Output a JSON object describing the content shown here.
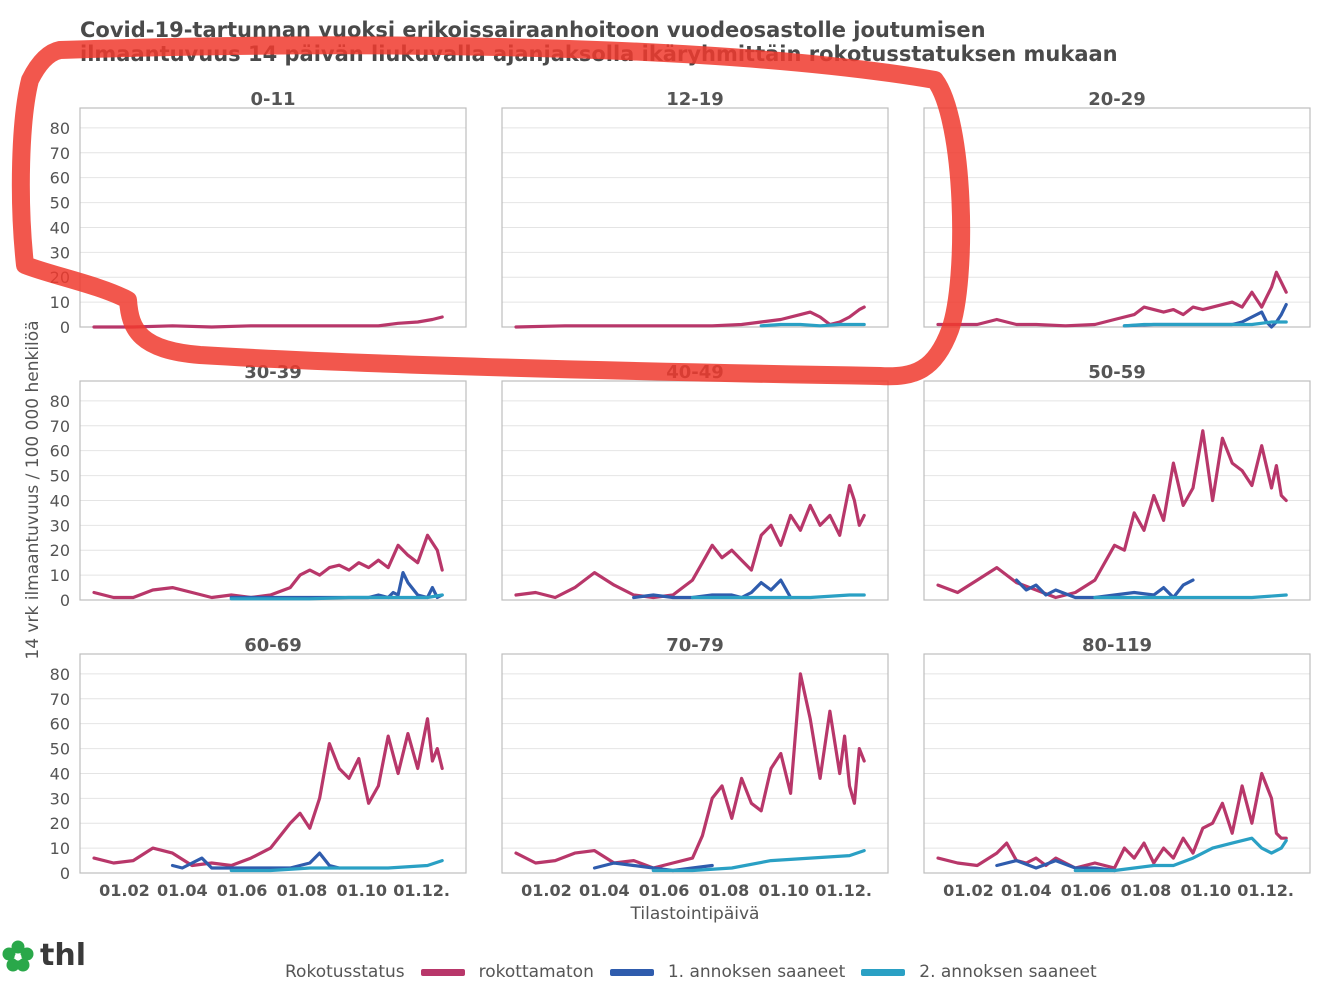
{
  "title": {
    "line1": "Covid-19-tartunnan vuoksi erikoissairaanhoitoon vuodeosastolle joutumisen",
    "line2": "ilmaantuvuus 14 päivän liukuvalla ajanjaksolla ikäryhmittäin rokotusstatuksen mukaan"
  },
  "logo": {
    "text": "thl",
    "icon": "flower-icon",
    "color": "#2aa84a"
  },
  "legend": {
    "title": "Rokotusstatus",
    "items": [
      {
        "label": "rokottamaton",
        "color": "#b8376a"
      },
      {
        "label": "1. annoksen saaneet",
        "color": "#2f5cad"
      },
      {
        "label": "2. annoksen saaneet",
        "color": "#2aa0c4"
      }
    ]
  },
  "annotation": {
    "type": "red-hand-drawn-outline",
    "color": "#f03a2e",
    "encloses": [
      "0-11",
      "12-19"
    ]
  },
  "chart_data": {
    "type": "line",
    "ylabel": "14 vrk ilmaantuvuus / 100 000 henkilöä",
    "xlabel": "Tilastointipäivä",
    "ylim": [
      0,
      88
    ],
    "yticks": [
      0,
      10,
      20,
      30,
      40,
      50,
      60,
      70,
      80
    ],
    "xlim": [
      0,
      365
    ],
    "xticks": [
      31,
      90,
      151,
      212,
      273,
      334
    ],
    "xtick_labels": [
      "01.02",
      "01.04",
      "01.06",
      "01.08",
      "01.10",
      "01.12."
    ],
    "grid": true,
    "panels": [
      {
        "name": "0-11",
        "series": [
          {
            "name": "rokottamaton",
            "x": [
              0,
              40,
              80,
              120,
              160,
              200,
              230,
              260,
              290,
              310,
              330,
              345,
              355
            ],
            "y": [
              0,
              0,
              0.5,
              0,
              0.5,
              0.5,
              0.5,
              0.5,
              0.5,
              1.5,
              2,
              3,
              4
            ]
          }
        ]
      },
      {
        "name": "12-19",
        "series": [
          {
            "name": "rokottamaton",
            "x": [
              0,
              50,
              100,
              150,
              200,
              230,
              250,
              270,
              290,
              300,
              310,
              320,
              330,
              340,
              350,
              355
            ],
            "y": [
              0,
              0.5,
              0.5,
              0.5,
              0.5,
              1,
              2,
              3,
              5,
              6,
              4,
              1,
              2,
              4,
              7,
              8
            ]
          },
          {
            "name": "2. annoksen saaneet",
            "x": [
              250,
              270,
              290,
              310,
              330,
              355
            ],
            "y": [
              0.5,
              1,
              1,
              0.5,
              1,
              1
            ]
          }
        ]
      },
      {
        "name": "20-29",
        "series": [
          {
            "name": "rokottamaton",
            "x": [
              0,
              20,
              40,
              60,
              80,
              100,
              130,
              160,
              180,
              200,
              210,
              220,
              230,
              240,
              250,
              260,
              270,
              280,
              290,
              300,
              310,
              320,
              330,
              335,
              340,
              345,
              350,
              355
            ],
            "y": [
              1,
              1,
              1,
              3,
              1,
              1,
              0.5,
              1,
              3,
              5,
              8,
              7,
              6,
              7,
              5,
              8,
              7,
              8,
              9,
              10,
              8,
              14,
              8,
              12,
              16,
              22,
              18,
              14
            ]
          },
          {
            "name": "1. annoksen saaneet",
            "x": [
              190,
              220,
              260,
              280,
              300,
              310,
              320,
              330,
              335,
              340,
              345,
              350,
              355
            ],
            "y": [
              0.5,
              1,
              1,
              1,
              1,
              2,
              4,
              6,
              2,
              0,
              2,
              5,
              9
            ]
          },
          {
            "name": "2. annoksen saaneet",
            "x": [
              190,
              210,
              230,
              260,
              290,
              320,
              340,
              355
            ],
            "y": [
              0.5,
              1,
              1,
              1,
              1,
              1,
              2,
              2
            ]
          }
        ]
      },
      {
        "name": "30-39",
        "series": [
          {
            "name": "rokottamaton",
            "x": [
              0,
              20,
              40,
              60,
              80,
              100,
              120,
              140,
              160,
              180,
              200,
              210,
              220,
              230,
              240,
              250,
              260,
              270,
              280,
              290,
              300,
              310,
              320,
              330,
              340,
              350,
              355
            ],
            "y": [
              3,
              1,
              1,
              4,
              5,
              3,
              1,
              2,
              1,
              2,
              5,
              10,
              12,
              10,
              13,
              14,
              12,
              15,
              13,
              16,
              13,
              22,
              18,
              15,
              26,
              20,
              12
            ]
          },
          {
            "name": "1. annoksen saaneet",
            "x": [
              140,
              170,
              200,
              230,
              260,
              280,
              290,
              300,
              305,
              310,
              315,
              320,
              330,
              340,
              345,
              350,
              355
            ],
            "y": [
              1,
              1,
              1,
              1,
              1,
              1,
              2,
              1,
              3,
              2,
              11,
              7,
              2,
              1,
              5,
              1,
              2
            ]
          },
          {
            "name": "2. annoksen saaneet",
            "x": [
              140,
              180,
              220,
              260,
              300,
              340,
              355
            ],
            "y": [
              0.5,
              0.5,
              0.5,
              1,
              1,
              1,
              2
            ]
          }
        ]
      },
      {
        "name": "40-49",
        "series": [
          {
            "name": "rokottamaton",
            "x": [
              0,
              20,
              40,
              60,
              80,
              100,
              120,
              140,
              160,
              180,
              190,
              200,
              210,
              220,
              230,
              240,
              250,
              260,
              270,
              280,
              290,
              300,
              310,
              320,
              330,
              340,
              345,
              350,
              355
            ],
            "y": [
              2,
              3,
              1,
              5,
              11,
              6,
              2,
              1,
              2,
              8,
              15,
              22,
              17,
              20,
              16,
              12,
              26,
              30,
              22,
              34,
              28,
              38,
              30,
              34,
              26,
              46,
              40,
              30,
              34
            ]
          },
          {
            "name": "1. annoksen saaneet",
            "x": [
              120,
              140,
              160,
              180,
              200,
              220,
              230,
              240,
              250,
              260,
              270,
              280
            ],
            "y": [
              1,
              2,
              1,
              1,
              2,
              2,
              1,
              3,
              7,
              4,
              8,
              1
            ]
          },
          {
            "name": "2. annoksen saaneet",
            "x": [
              180,
              220,
              260,
              300,
              340,
              355
            ],
            "y": [
              1,
              1,
              1,
              1,
              2,
              2
            ]
          }
        ]
      },
      {
        "name": "50-59",
        "series": [
          {
            "name": "rokottamaton",
            "x": [
              0,
              20,
              40,
              60,
              80,
              100,
              120,
              140,
              160,
              180,
              190,
              200,
              210,
              220,
              230,
              240,
              250,
              260,
              270,
              280,
              290,
              300,
              310,
              320,
              330,
              340,
              345,
              350,
              355
            ],
            "y": [
              6,
              3,
              8,
              13,
              7,
              4,
              1,
              3,
              8,
              22,
              20,
              35,
              28,
              42,
              32,
              55,
              38,
              45,
              68,
              40,
              65,
              55,
              52,
              46,
              62,
              45,
              54,
              42,
              40
            ]
          },
          {
            "name": "1. annoksen saaneet",
            "x": [
              80,
              90,
              100,
              110,
              120,
              140,
              160,
              180,
              200,
              220,
              230,
              240,
              250,
              260
            ],
            "y": [
              8,
              4,
              6,
              2,
              4,
              1,
              1,
              2,
              3,
              2,
              5,
              1,
              6,
              8
            ]
          },
          {
            "name": "2. annoksen saaneet",
            "x": [
              160,
              200,
              240,
              280,
              320,
              355
            ],
            "y": [
              1,
              1,
              1,
              1,
              1,
              2
            ]
          }
        ]
      },
      {
        "name": "60-69",
        "series": [
          {
            "name": "rokottamaton",
            "x": [
              0,
              20,
              40,
              60,
              80,
              100,
              120,
              140,
              160,
              180,
              200,
              210,
              220,
              230,
              240,
              250,
              260,
              270,
              280,
              290,
              300,
              310,
              320,
              330,
              340,
              345,
              350,
              355
            ],
            "y": [
              6,
              4,
              5,
              10,
              8,
              3,
              4,
              3,
              6,
              10,
              20,
              24,
              18,
              30,
              52,
              42,
              38,
              46,
              28,
              35,
              55,
              40,
              56,
              42,
              62,
              45,
              50,
              42
            ]
          },
          {
            "name": "1. annoksen saaneet",
            "x": [
              80,
              90,
              100,
              110,
              120,
              140,
              160,
              180,
              200,
              220,
              230,
              240,
              250
            ],
            "y": [
              3,
              2,
              4,
              6,
              2,
              2,
              2,
              2,
              2,
              4,
              8,
              3,
              2
            ]
          },
          {
            "name": "2. annoksen saaneet",
            "x": [
              140,
              180,
              220,
              260,
              300,
              340,
              355
            ],
            "y": [
              1,
              1,
              2,
              2,
              2,
              3,
              5
            ]
          }
        ]
      },
      {
        "name": "70-79",
        "series": [
          {
            "name": "rokottamaton",
            "x": [
              0,
              20,
              40,
              60,
              80,
              100,
              120,
              140,
              160,
              180,
              190,
              200,
              210,
              220,
              230,
              240,
              250,
              260,
              270,
              280,
              290,
              300,
              310,
              320,
              330,
              335,
              340,
              345,
              350,
              355
            ],
            "y": [
              8,
              4,
              5,
              8,
              9,
              4,
              5,
              2,
              4,
              6,
              15,
              30,
              35,
              22,
              38,
              28,
              25,
              42,
              48,
              32,
              80,
              62,
              38,
              65,
              40,
              55,
              35,
              28,
              50,
              45
            ]
          },
          {
            "name": "1. annoksen saaneet",
            "x": [
              80,
              100,
              120,
              140,
              160,
              180,
              200
            ],
            "y": [
              2,
              4,
              3,
              2,
              1,
              2,
              3
            ]
          },
          {
            "name": "2. annoksen saaneet",
            "x": [
              140,
              180,
              220,
              260,
              300,
              340,
              355
            ],
            "y": [
              1,
              1,
              2,
              5,
              6,
              7,
              9
            ]
          }
        ]
      },
      {
        "name": "80-119",
        "series": [
          {
            "name": "rokottamaton",
            "x": [
              0,
              20,
              40,
              60,
              70,
              80,
              90,
              100,
              110,
              120,
              140,
              160,
              180,
              190,
              200,
              210,
              220,
              230,
              240,
              250,
              260,
              270,
              280,
              290,
              300,
              310,
              320,
              330,
              340,
              345,
              350,
              355
            ],
            "y": [
              6,
              4,
              3,
              8,
              12,
              5,
              4,
              6,
              3,
              6,
              2,
              4,
              2,
              10,
              6,
              12,
              4,
              10,
              6,
              14,
              8,
              18,
              20,
              28,
              16,
              35,
              20,
              40,
              30,
              16,
              14,
              14
            ]
          },
          {
            "name": "1. annoksen saaneet",
            "x": [
              60,
              80,
              100,
              120,
              140,
              160,
              180
            ],
            "y": [
              3,
              5,
              2,
              5,
              2,
              2,
              1
            ]
          },
          {
            "name": "2. annoksen saaneet",
            "x": [
              140,
              180,
              200,
              220,
              240,
              260,
              280,
              300,
              320,
              330,
              340,
              350,
              355
            ],
            "y": [
              1,
              1,
              2,
              3,
              3,
              6,
              10,
              12,
              14,
              10,
              8,
              10,
              13
            ]
          }
        ]
      }
    ]
  }
}
